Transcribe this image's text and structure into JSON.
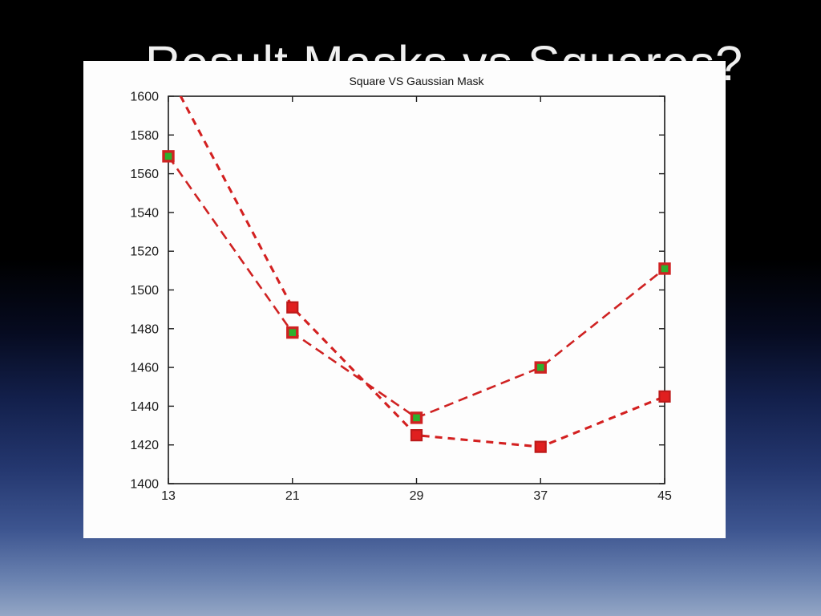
{
  "slide": {
    "clipped_title_text": "Result Masks vs Squares?",
    "background_top_color": "#000000",
    "background_bottom_color": "#93a6c5",
    "panel_color": "#fdfdfd"
  },
  "chart_data": {
    "type": "line",
    "title": "Square VS Gaussian Mask",
    "xlabel": "",
    "ylabel": "",
    "x": [
      13,
      21,
      29,
      37,
      45
    ],
    "xticks": [
      13,
      21,
      29,
      37,
      45
    ],
    "yticks": [
      1400,
      1420,
      1440,
      1460,
      1480,
      1500,
      1520,
      1540,
      1560,
      1580,
      1600
    ],
    "xlim": [
      13,
      45
    ],
    "ylim": [
      1400,
      1600
    ],
    "grid": false,
    "legend": "none",
    "axis_color": "#1a1a1a",
    "tick_label_color": "#1a1a1a",
    "series": [
      {
        "name": "green-filled-square-markers",
        "values": [
          1569,
          1478,
          1434,
          1460,
          1511
        ],
        "line_color": "#cf2222",
        "line_style": "dashed",
        "marker": "square",
        "marker_fill": "#2db02d",
        "marker_edge": "#cf2222"
      },
      {
        "name": "red-filled-square-markers",
        "values": [
          1612,
          1491,
          1425,
          1419,
          1445
        ],
        "line_color": "#d32020",
        "line_style": "dashed",
        "marker": "square",
        "marker_fill": "#e01f1f",
        "marker_edge": "#bd1a1a"
      }
    ]
  }
}
